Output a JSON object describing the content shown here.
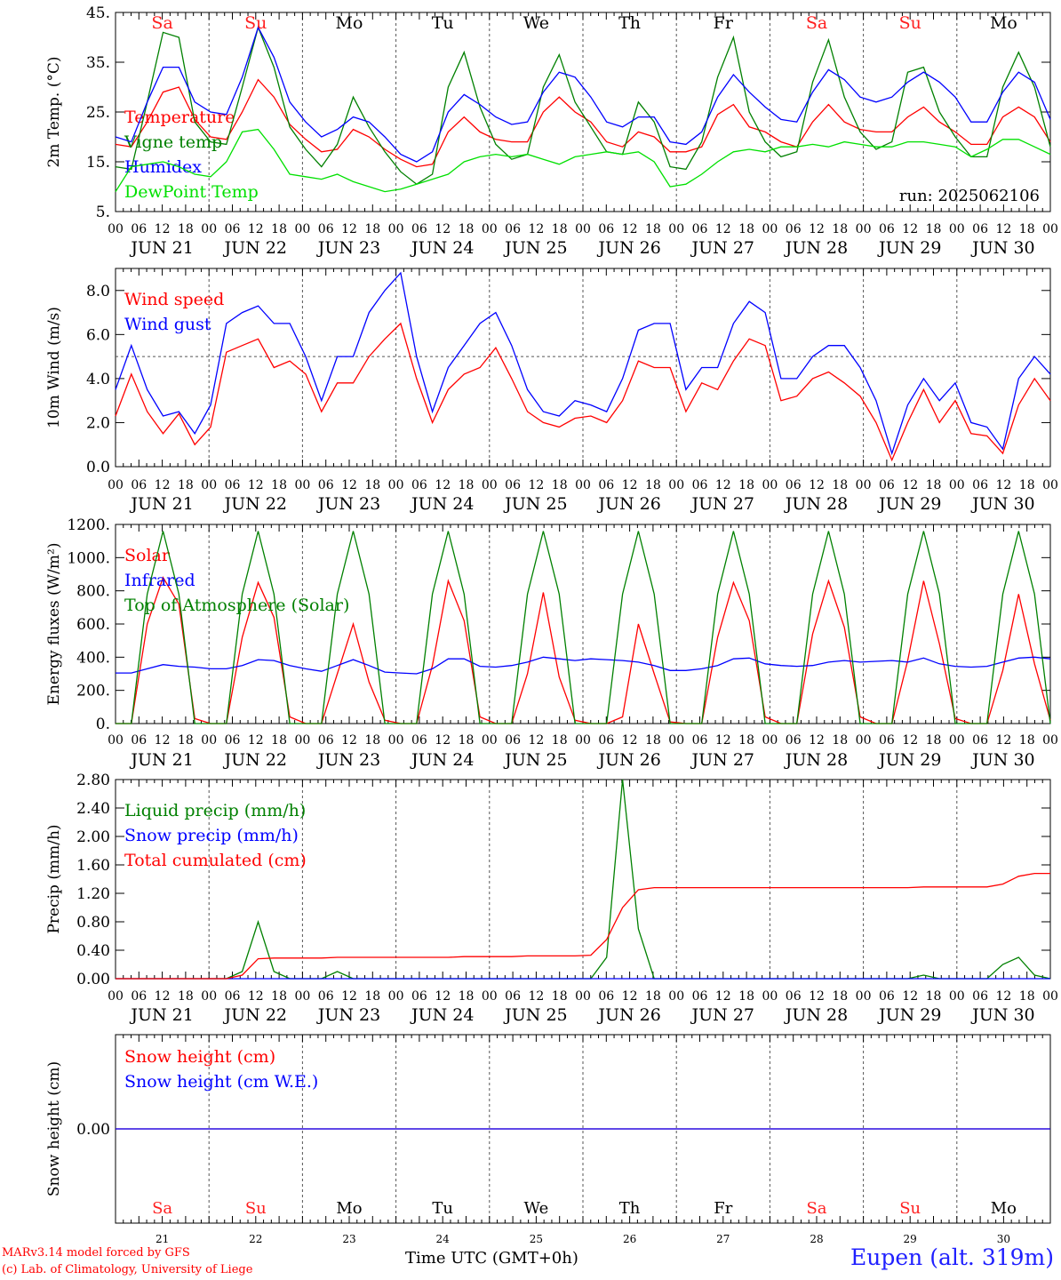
{
  "footer": {
    "model_line": "MARv3.14 model forced by GFS",
    "credit_line": "(c) Lab. of Climatology, University of Liege",
    "station": "Eupen (alt. 319m)",
    "time_label": "Time UTC (GMT+0h)"
  },
  "colors": {
    "red": "#ff0000",
    "blue": "#0000ff",
    "green": "#008000",
    "lightgreen": "#00e000",
    "grid": "#555555",
    "weekend": "#ff2020",
    "weekday": "#000000"
  },
  "chart_data": {
    "days": [
      {
        "date_label": "JUN 21",
        "day_number": "21",
        "weekday": "Sa",
        "weekend": true
      },
      {
        "date_label": "JUN 22",
        "day_number": "22",
        "weekday": "Su",
        "weekend": true
      },
      {
        "date_label": "JUN 23",
        "day_number": "23",
        "weekday": "Mo",
        "weekend": false
      },
      {
        "date_label": "JUN 24",
        "day_number": "24",
        "weekday": "Tu",
        "weekend": false
      },
      {
        "date_label": "JUN 25",
        "day_number": "25",
        "weekday": "We",
        "weekend": false
      },
      {
        "date_label": "JUN 26",
        "day_number": "26",
        "weekday": "Th",
        "weekend": false
      },
      {
        "date_label": "JUN 27",
        "day_number": "27",
        "weekday": "Fr",
        "weekend": false
      },
      {
        "date_label": "JUN 28",
        "day_number": "28",
        "weekday": "Sa",
        "weekend": true
      },
      {
        "date_label": "JUN 29",
        "day_number": "29",
        "weekday": "Su",
        "weekend": true
      },
      {
        "date_label": "JUN 30",
        "day_number": "30",
        "weekday": "Mo",
        "weekend": false
      }
    ],
    "hour_ticks": [
      "00",
      "06",
      "12",
      "18"
    ],
    "end_tick": "00",
    "panels": [
      {
        "id": "temperature",
        "type": "line",
        "ylabel": "2m Temp. (°C)",
        "ylim": [
          5,
          45
        ],
        "yticks": [
          "5.",
          "15.",
          "25.",
          "35.",
          "45."
        ],
        "yvalues": [
          5,
          15,
          25,
          35,
          45
        ],
        "annotation": "run: 2025062106",
        "show_weekdays": true,
        "hline": null,
        "series": [
          {
            "name": "Temperature",
            "color": "#ff0000",
            "values": [
              18.5,
              18.0,
              23.0,
              29.0,
              30.0,
              23.5,
              20.0,
              19.5,
              25.0,
              31.5,
              28.0,
              22.5,
              19.5,
              17.0,
              17.5,
              21.5,
              20.0,
              17.5,
              15.5,
              14.0,
              14.5,
              21.0,
              24.0,
              21.0,
              19.5,
              19.0,
              19.0,
              25.0,
              28.0,
              25.0,
              23.0,
              19.0,
              18.0,
              21.0,
              20.0,
              17.0,
              17.0,
              18.0,
              24.5,
              26.5,
              22.0,
              21.0,
              19.0,
              18.0,
              23.0,
              26.5,
              23.0,
              21.5,
              21.0,
              21.0,
              24.0,
              26.0,
              23.0,
              21.0,
              18.5,
              18.5,
              24.0,
              26.0,
              24.0,
              19.0
            ]
          },
          {
            "name": "Vigne temp",
            "color": "#008000",
            "values": [
              14.0,
              13.5,
              27.0,
              41.0,
              40.0,
              23.0,
              19.0,
              18.5,
              30.0,
              42.0,
              34.0,
              22.0,
              17.5,
              14.0,
              18.5,
              28.0,
              22.0,
              17.0,
              13.0,
              10.5,
              12.5,
              30.0,
              37.0,
              26.0,
              18.5,
              15.5,
              16.5,
              30.0,
              36.5,
              27.0,
              22.0,
              17.0,
              16.5,
              27.0,
              23.0,
              14.0,
              13.5,
              19.0,
              32.0,
              40.0,
              25.0,
              19.0,
              16.0,
              17.0,
              31.0,
              39.5,
              28.0,
              21.0,
              17.5,
              19.0,
              33.0,
              34.0,
              25.0,
              20.0,
              16.0,
              16.0,
              30.0,
              37.0,
              30.0,
              18.0
            ]
          },
          {
            "name": "Humidex",
            "color": "#0000ff",
            "values": [
              20.0,
              19.0,
              27.0,
              34.0,
              34.0,
              27.0,
              25.0,
              24.5,
              32.0,
              42.0,
              36.0,
              27.0,
              23.0,
              20.0,
              21.5,
              24.0,
              23.0,
              20.0,
              16.5,
              15.0,
              17.0,
              25.0,
              28.5,
              26.5,
              24.0,
              22.5,
              23.0,
              29.0,
              33.0,
              32.0,
              28.0,
              23.0,
              22.0,
              24.0,
              24.0,
              19.0,
              18.5,
              21.0,
              28.0,
              32.5,
              29.0,
              26.0,
              23.5,
              23.0,
              29.0,
              33.5,
              31.5,
              28.0,
              27.0,
              28.0,
              31.0,
              33.0,
              31.0,
              28.0,
              23.0,
              23.0,
              29.0,
              33.0,
              31.0,
              23.5
            ]
          },
          {
            "name": "DewPoint Temp",
            "color": "#00e000",
            "values": [
              9.0,
              14.0,
              14.5,
              15.0,
              14.0,
              12.5,
              12.0,
              15.0,
              21.0,
              21.5,
              17.5,
              12.5,
              12.0,
              11.5,
              12.5,
              11.0,
              10.0,
              9.0,
              9.5,
              10.5,
              11.5,
              12.5,
              15.0,
              16.0,
              16.5,
              16.0,
              16.5,
              15.5,
              14.5,
              16.0,
              16.5,
              17.0,
              16.5,
              17.0,
              15.0,
              10.0,
              10.5,
              12.5,
              15.0,
              17.0,
              17.5,
              17.0,
              18.0,
              18.0,
              18.5,
              18.0,
              19.0,
              18.5,
              18.0,
              18.0,
              19.0,
              19.0,
              18.5,
              18.0,
              16.0,
              17.5,
              19.5,
              19.5,
              18.0,
              16.5
            ]
          }
        ]
      },
      {
        "id": "wind",
        "type": "line",
        "ylabel": "10m Wind (m/s)",
        "ylim": [
          0,
          9
        ],
        "yticks": [
          "0.0",
          "2.0",
          "4.0",
          "6.0",
          "8.0"
        ],
        "yvalues": [
          0,
          2,
          4,
          6,
          8
        ],
        "annotation": "",
        "show_weekdays": false,
        "hline": 5,
        "series": [
          {
            "name": "Wind speed",
            "color": "#ff0000",
            "values": [
              2.3,
              4.2,
              2.5,
              1.5,
              2.4,
              1.0,
              1.8,
              5.2,
              5.5,
              5.8,
              4.5,
              4.8,
              4.2,
              2.5,
              3.8,
              3.8,
              5.0,
              5.8,
              6.5,
              4.0,
              2.0,
              3.5,
              4.2,
              4.5,
              5.4,
              4.0,
              2.5,
              2.0,
              1.8,
              2.2,
              2.3,
              2.0,
              3.0,
              4.8,
              4.5,
              4.5,
              2.5,
              3.8,
              3.5,
              4.8,
              5.8,
              5.5,
              3.0,
              3.2,
              4.0,
              4.3,
              3.8,
              3.2,
              2.0,
              0.3,
              2.0,
              3.5,
              2.0,
              3.0,
              1.5,
              1.4,
              0.6,
              2.8,
              4.0,
              3.0
            ]
          },
          {
            "name": "Wind gust",
            "color": "#0000ff",
            "values": [
              3.5,
              5.5,
              3.5,
              2.3,
              2.5,
              1.5,
              2.8,
              6.5,
              7.0,
              7.3,
              6.5,
              6.5,
              5.0,
              3.0,
              5.0,
              5.0,
              7.0,
              8.0,
              8.8,
              5.0,
              2.5,
              4.5,
              5.5,
              6.5,
              7.0,
              5.5,
              3.5,
              2.5,
              2.3,
              3.0,
              2.8,
              2.5,
              4.0,
              6.2,
              6.5,
              6.5,
              3.5,
              4.5,
              4.5,
              6.5,
              7.5,
              7.0,
              4.0,
              4.0,
              5.0,
              5.5,
              5.5,
              4.5,
              3.0,
              0.6,
              2.8,
              4.0,
              3.0,
              3.8,
              2.0,
              1.8,
              0.8,
              4.0,
              5.0,
              4.2
            ]
          }
        ]
      },
      {
        "id": "energy",
        "type": "line",
        "ylabel": "Energy fluxes (W/m²)",
        "ylim": [
          0,
          1200
        ],
        "yticks": [
          "0.",
          "200.",
          "400.",
          "600.",
          "800.",
          "1000.",
          "1200."
        ],
        "yvalues": [
          0,
          200,
          400,
          600,
          800,
          1000,
          1200
        ],
        "annotation": "",
        "show_weekdays": false,
        "hline": null,
        "series": [
          {
            "name": "Solar",
            "color": "#ff0000",
            "values": [
              0,
              0,
              600,
              880,
              720,
              30,
              0,
              0,
              520,
              850,
              640,
              40,
              0,
              0,
              300,
              600,
              250,
              20,
              0,
              0,
              350,
              860,
              620,
              40,
              0,
              0,
              300,
              790,
              280,
              20,
              0,
              0,
              40,
              600,
              300,
              10,
              0,
              0,
              520,
              850,
              620,
              40,
              0,
              0,
              540,
              860,
              580,
              40,
              0,
              0,
              380,
              860,
              480,
              30,
              0,
              0,
              320,
              780,
              360,
              20
            ]
          },
          {
            "name": "Infrared",
            "color": "#0000ff",
            "values": [
              305,
              305,
              330,
              355,
              345,
              340,
              330,
              330,
              350,
              385,
              380,
              350,
              330,
              315,
              350,
              385,
              350,
              310,
              305,
              300,
              330,
              390,
              390,
              345,
              340,
              350,
              370,
              400,
              390,
              380,
              390,
              385,
              380,
              370,
              350,
              320,
              320,
              330,
              350,
              390,
              395,
              360,
              350,
              345,
              350,
              370,
              380,
              370,
              375,
              380,
              370,
              395,
              360,
              345,
              340,
              345,
              370,
              395,
              400,
              390
            ]
          },
          {
            "name": "Top of Atmosphere (Solar)",
            "color": "#008000",
            "values": [
              0,
              0,
              780,
              1160,
              780,
              0,
              0,
              0,
              780,
              1160,
              780,
              0,
              0,
              0,
              780,
              1160,
              780,
              0,
              0,
              0,
              780,
              1160,
              780,
              0,
              0,
              0,
              780,
              1160,
              780,
              0,
              0,
              0,
              780,
              1160,
              780,
              0,
              0,
              0,
              780,
              1160,
              780,
              0,
              0,
              0,
              780,
              1160,
              780,
              0,
              0,
              0,
              780,
              1160,
              780,
              0,
              0,
              0,
              780,
              1160,
              780,
              0
            ]
          }
        ]
      },
      {
        "id": "precip",
        "type": "line",
        "ylabel": "Precip (mm/h)",
        "ylim": [
          0,
          2.8
        ],
        "yticks": [
          "0.00",
          "0.40",
          "0.80",
          "1.20",
          "1.60",
          "2.00",
          "2.40",
          "2.80"
        ],
        "yvalues": [
          0,
          0.4,
          0.8,
          1.2,
          1.6,
          2.0,
          2.4,
          2.8
        ],
        "annotation": "",
        "show_weekdays": false,
        "hline": null,
        "series": [
          {
            "name": "Liquid precip (mm/h)",
            "color": "#008000",
            "values": [
              0,
              0,
              0,
              0,
              0,
              0,
              0,
              0,
              0.1,
              0.8,
              0.1,
              0,
              0,
              0,
              0.1,
              0,
              0,
              0,
              0,
              0,
              0,
              0,
              0,
              0,
              0,
              0,
              0,
              0,
              0,
              0,
              0,
              0.3,
              2.8,
              0.7,
              0,
              0,
              0,
              0,
              0,
              0,
              0,
              0,
              0,
              0,
              0,
              0,
              0,
              0,
              0,
              0,
              0,
              0.05,
              0,
              0,
              0,
              0,
              0.2,
              0.3,
              0.05,
              0
            ]
          },
          {
            "name": "Snow precip (mm/h)",
            "color": "#0000ff",
            "values": [
              0,
              0,
              0,
              0,
              0,
              0,
              0,
              0,
              0,
              0,
              0,
              0,
              0,
              0,
              0,
              0,
              0,
              0,
              0,
              0,
              0,
              0,
              0,
              0,
              0,
              0,
              0,
              0,
              0,
              0,
              0,
              0,
              0,
              0,
              0,
              0,
              0,
              0,
              0,
              0,
              0,
              0,
              0,
              0,
              0,
              0,
              0,
              0,
              0,
              0,
              0,
              0,
              0,
              0,
              0,
              0,
              0,
              0,
              0,
              0
            ]
          },
          {
            "name": "Total cumulated (cm)",
            "color": "#ff0000",
            "values": [
              0,
              0,
              0,
              0,
              0,
              0,
              0,
              0,
              0.05,
              0.28,
              0.29,
              0.29,
              0.29,
              0.29,
              0.3,
              0.3,
              0.3,
              0.3,
              0.3,
              0.3,
              0.3,
              0.3,
              0.31,
              0.31,
              0.31,
              0.31,
              0.32,
              0.32,
              0.32,
              0.32,
              0.33,
              0.55,
              1.0,
              1.25,
              1.28,
              1.28,
              1.28,
              1.28,
              1.28,
              1.28,
              1.28,
              1.28,
              1.28,
              1.28,
              1.28,
              1.28,
              1.28,
              1.28,
              1.28,
              1.28,
              1.28,
              1.29,
              1.29,
              1.29,
              1.29,
              1.29,
              1.33,
              1.44,
              1.48,
              1.48
            ]
          }
        ]
      },
      {
        "id": "snow",
        "type": "line",
        "ylabel": "Snow height (cm)",
        "ylim": [
          -1,
          1
        ],
        "yticks": [
          "0.00"
        ],
        "yvalues": [
          0
        ],
        "annotation": "",
        "show_weekdays": false,
        "hline": null,
        "series": [
          {
            "name": "Snow height (cm)",
            "color": "#ff0000",
            "values": [
              0,
              0
            ]
          },
          {
            "name": "Snow height (cm W.E.)",
            "color": "#0000ff",
            "values": [
              0,
              0
            ]
          }
        ]
      }
    ]
  }
}
